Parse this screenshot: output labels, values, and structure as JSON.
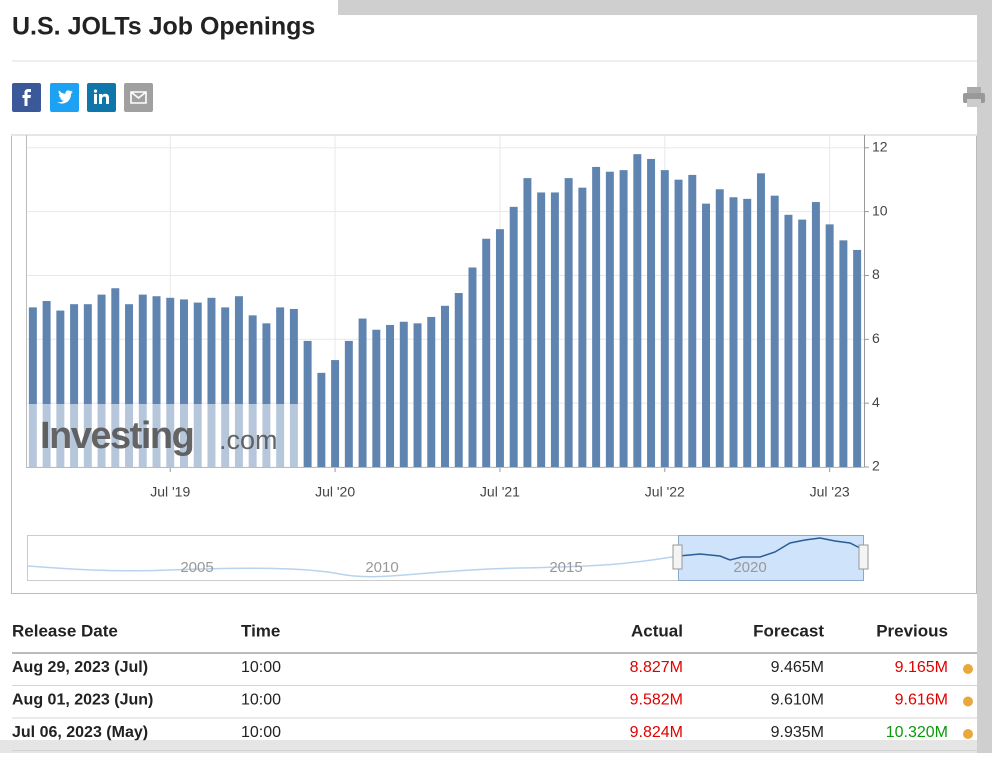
{
  "header": {
    "title": "U.S. JOLTs Job Openings"
  },
  "chart_data": {
    "type": "bar",
    "categories": [
      null,
      null,
      null,
      null,
      null,
      null,
      null,
      null,
      null,
      null,
      "Jul '19",
      null,
      null,
      null,
      null,
      null,
      null,
      null,
      null,
      null,
      null,
      null,
      "Jul '20",
      null,
      null,
      null,
      null,
      null,
      null,
      null,
      null,
      null,
      null,
      null,
      "Jul '21",
      null,
      null,
      null,
      null,
      null,
      null,
      null,
      null,
      null,
      null,
      null,
      "Jul '22",
      null,
      null,
      null,
      null,
      null,
      null,
      null,
      null,
      null,
      null,
      null,
      "Jul '23",
      null,
      null
    ],
    "values": [
      7.0,
      7.2,
      6.9,
      7.1,
      7.1,
      7.4,
      7.6,
      7.1,
      7.4,
      7.35,
      7.3,
      7.25,
      7.15,
      7.3,
      7.0,
      7.35,
      6.75,
      6.5,
      7.0,
      6.95,
      5.95,
      4.95,
      5.35,
      5.95,
      6.65,
      6.3,
      6.45,
      6.55,
      6.5,
      6.7,
      7.05,
      7.45,
      8.25,
      9.15,
      9.45,
      10.15,
      11.05,
      10.6,
      10.6,
      11.05,
      10.75,
      11.4,
      11.25,
      11.3,
      11.8,
      11.65,
      11.3,
      11.0,
      11.15,
      10.25,
      10.7,
      10.45,
      10.4,
      11.2,
      10.5,
      9.9,
      9.75,
      10.3,
      9.6,
      9.1,
      8.8
    ],
    "color": "#5f84b0",
    "ylim": [
      2,
      12.4
    ],
    "yticks": [
      2,
      4,
      6,
      8,
      10,
      12
    ],
    "grid": true,
    "y_axis_side": "right",
    "watermark": [
      "Investing",
      ".com"
    ],
    "navigator_labels": [
      "2005",
      "2010",
      "2015",
      "2020"
    ]
  },
  "table": {
    "header": [
      "Release Date",
      "Time",
      "Actual",
      "Forecast",
      "Previous"
    ],
    "rows": [
      [
        "Aug 29, 2023 (Jul)",
        "10:00",
        "8.827M",
        "9.465M",
        "9.165M"
      ],
      [
        "Aug 01, 2023 (Jun)",
        "10:00",
        "9.582M",
        "9.610M",
        "9.616M"
      ],
      [
        "Jul 06, 2023 (May)",
        "10:00",
        "9.824M",
        "9.935M",
        "10.320M"
      ]
    ],
    "cell_colors": [
      [
        "#222",
        "#222",
        "#e00000",
        "#222",
        "#e00000"
      ],
      [
        "#222",
        "#222",
        "#e00000",
        "#222",
        "#e00000"
      ],
      [
        "#222",
        "#222",
        "#e00000",
        "#222",
        "#0a9a0a"
      ]
    ]
  }
}
